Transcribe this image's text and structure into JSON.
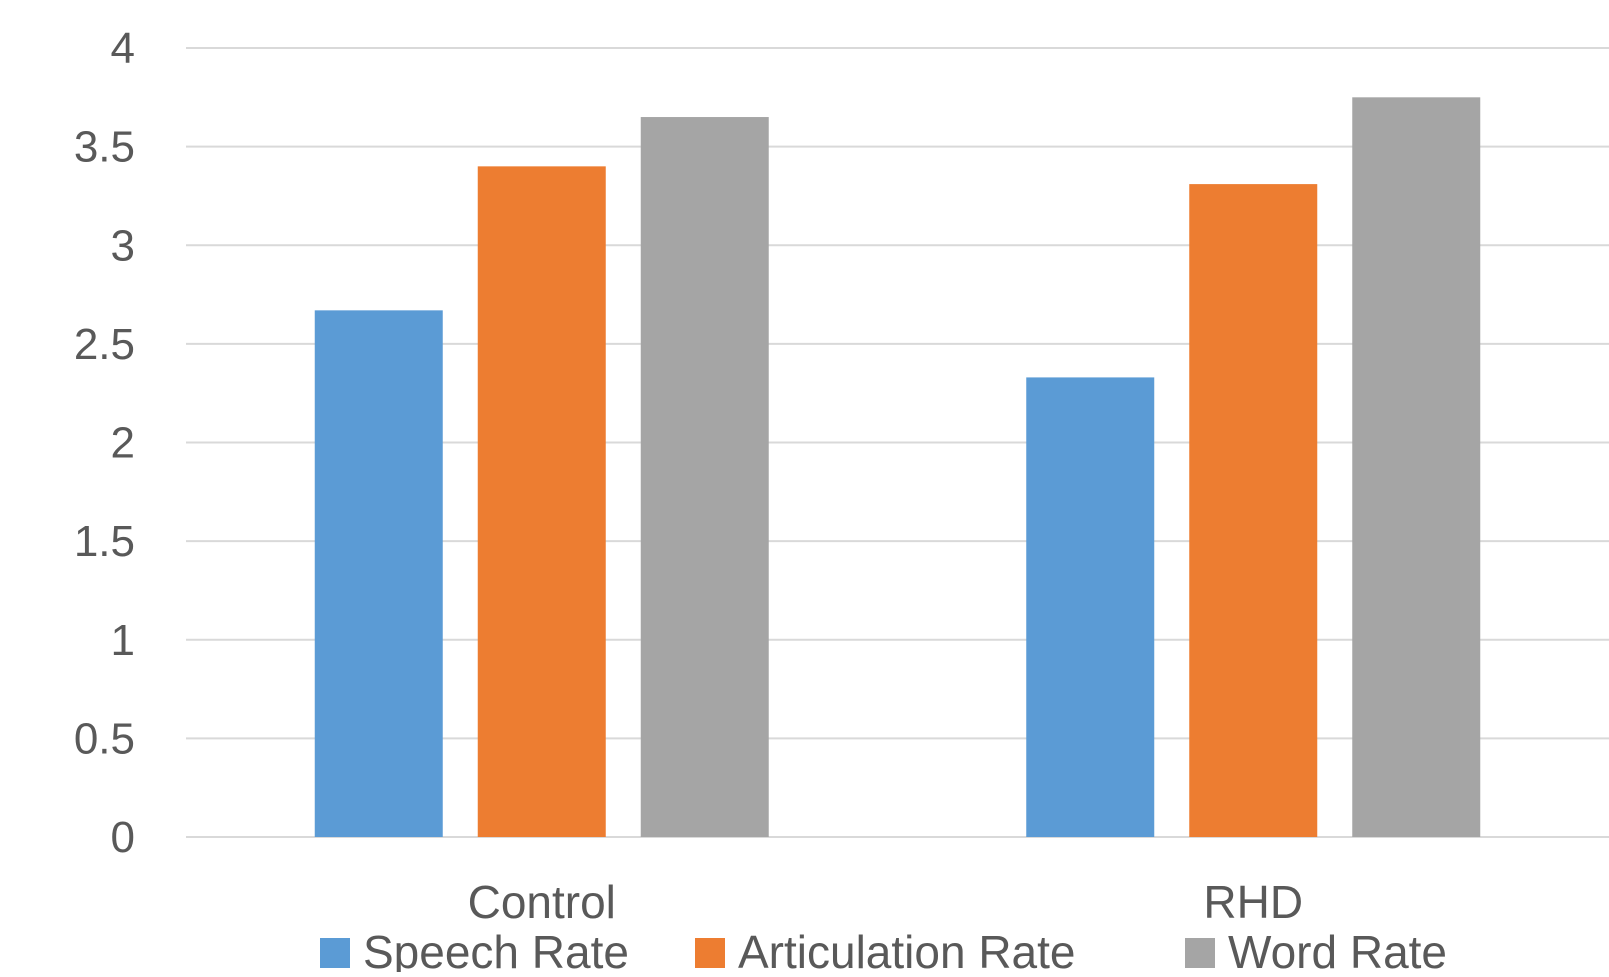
{
  "chart_data": {
    "type": "bar",
    "title": "",
    "xlabel": "",
    "ylabel": "",
    "categories": [
      "Control",
      "RHD"
    ],
    "series": [
      {
        "name": "Speech Rate",
        "color": "#5B9BD5",
        "values": [
          2.67,
          2.33
        ]
      },
      {
        "name": "Articulation Rate",
        "color": "#ED7D31",
        "values": [
          3.4,
          3.31
        ]
      },
      {
        "name": "Word Rate",
        "color": "#A5A5A5",
        "values": [
          3.65,
          3.75
        ]
      }
    ],
    "ylim": [
      0,
      4
    ],
    "yticks": [
      "0",
      "0.5",
      "1",
      "1.5",
      "2",
      "2.5",
      "3",
      "3.5",
      "4"
    ],
    "grid": true,
    "legend_position": "bottom",
    "gridline_color": "#D9D9D9",
    "text_color": "#595959"
  }
}
